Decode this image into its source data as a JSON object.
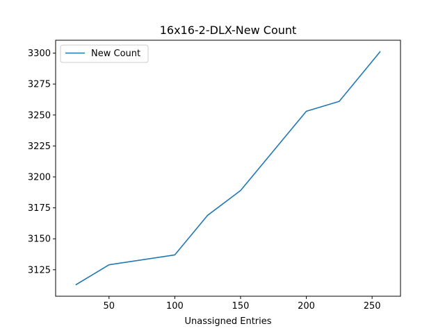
{
  "chart_data": {
    "type": "line",
    "title": "16x16-2-DLX-New Count",
    "xlabel": "Unassigned Entries",
    "ylabel": "",
    "xlim": [
      9.4,
      271.6
    ],
    "ylim": [
      3103.6,
      3310.4
    ],
    "x_ticks": [
      50,
      100,
      150,
      200,
      250
    ],
    "y_ticks": [
      3125,
      3150,
      3175,
      3200,
      3225,
      3250,
      3275,
      3300
    ],
    "grid": false,
    "legend_position": "upper-left",
    "series": [
      {
        "name": "New Count",
        "color": "#1f77b4",
        "x": [
          25,
          50,
          100,
          125,
          150,
          175,
          200,
          225,
          256
        ],
        "y": [
          3113,
          3129,
          3137,
          3169,
          3189,
          3221,
          3253,
          3261,
          3301
        ]
      }
    ]
  }
}
